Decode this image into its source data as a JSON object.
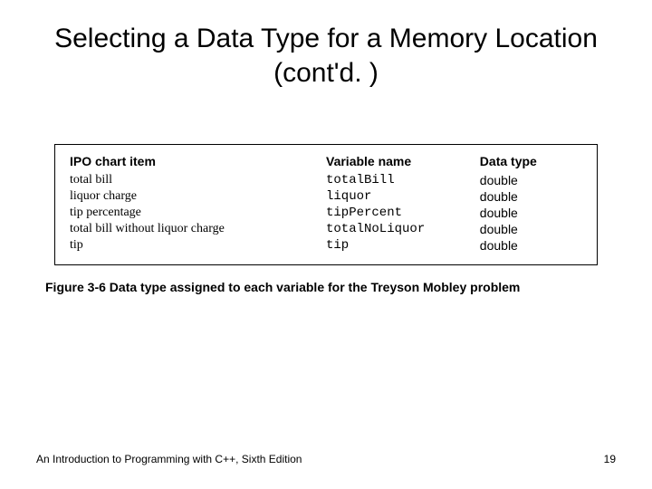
{
  "slide": {
    "title": "Selecting a Data Type for a Memory Location (cont'd. )",
    "caption": "Figure 3-6 Data type assigned to each variable for the Treyson Mobley problem",
    "footer_text": "An Introduction to Programming with C++, Sixth Edition",
    "page_number": "19"
  },
  "chart": {
    "headers": {
      "ipo": "IPO chart item",
      "var": "Variable name",
      "type": "Data type"
    },
    "rows": [
      {
        "ipo": "total bill",
        "var": "totalBill",
        "type": "double"
      },
      {
        "ipo": "liquor charge",
        "var": "liquor",
        "type": "double"
      },
      {
        "ipo": "tip percentage",
        "var": "tipPercent",
        "type": "double"
      },
      {
        "ipo": "total bill without liquor charge",
        "var": "totalNoLiquor",
        "type": "double"
      },
      {
        "ipo": "tip",
        "var": "tip",
        "type": "double"
      }
    ]
  },
  "style": {
    "title_fontsize": 30,
    "header_fontsize": 14,
    "row_fontsize": 14,
    "caption_fontsize": 14,
    "footer_fontsize": 12,
    "colors": {
      "background": "#ffffff",
      "text": "#000000",
      "border": "#000000"
    }
  }
}
